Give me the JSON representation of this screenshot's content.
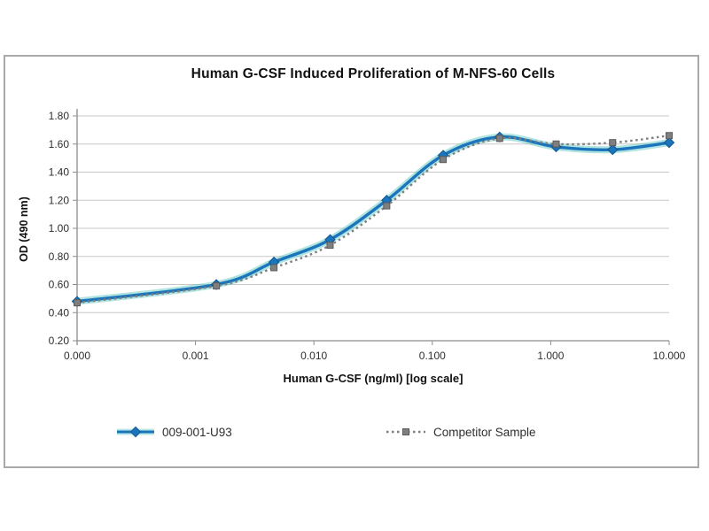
{
  "title": "Human G-CSF Induced Proliferation of M-NFS-60 Cells",
  "chart_data": {
    "type": "line",
    "title": "Human G-CSF Induced Proliferation of M-NFS-60 Cells",
    "xlabel": "Human G-CSF (ng/ml) [log scale]",
    "ylabel": "OD (490 nm)",
    "x_scale": "log",
    "grid": "horizontal",
    "legend_position": "bottom",
    "ylim": [
      0.2,
      1.8
    ],
    "y_ticks": [
      1.8,
      1.6,
      1.4,
      1.2,
      1.0,
      0.8,
      0.6,
      0.4,
      0.2
    ],
    "x_tick_labels": [
      "0.000",
      "0.001",
      "0.010",
      "0.100",
      "1.000",
      "10.000"
    ],
    "x": [
      0,
      0.0015,
      0.0046,
      0.0137,
      0.0412,
      0.1235,
      0.3704,
      1.1111,
      3.3333,
      10.0
    ],
    "series": [
      {
        "name": "009-001-U93",
        "color": "#1b74bc",
        "glow": "#4ec3bd",
        "marker": "diamond",
        "marker_stroke": "#11578d",
        "line": "solid",
        "values": [
          0.48,
          0.6,
          0.76,
          0.92,
          1.2,
          1.52,
          1.65,
          1.58,
          1.56,
          1.61
        ]
      },
      {
        "name": "Competitor Sample",
        "color": "#7f7f7f",
        "glow": null,
        "marker": "square",
        "marker_stroke": "#5c5c5c",
        "line": "dotted",
        "values": [
          0.47,
          0.59,
          0.72,
          0.88,
          1.16,
          1.49,
          1.64,
          1.6,
          1.61,
          1.66
        ]
      }
    ]
  },
  "colors": {
    "gridline": "#c8c8c8",
    "axis": "#8c8c8c",
    "panel_border": "#a9a9a9"
  }
}
